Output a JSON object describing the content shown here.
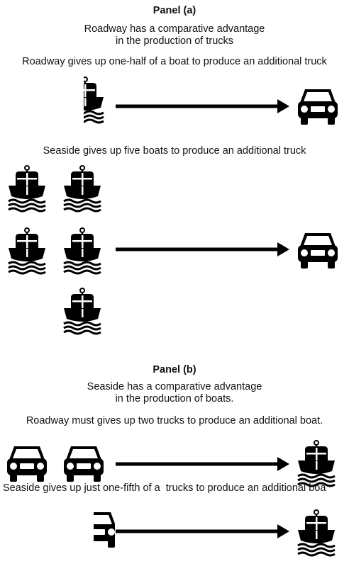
{
  "panel_a": {
    "title": "Panel (a)",
    "advantage": [
      "Roadway has a comparative advantage",
      "in the production of trucks"
    ],
    "captions": [
      "Roadway gives up one-half of a boat to produce an additional truck",
      "Seaside gives up five boats to produce an additional truck"
    ]
  },
  "panel_b": {
    "title": "Panel (b)",
    "advantage": [
      "Seaside has a comparative advantage",
      "in the production of boats."
    ],
    "captions": [
      "Roadway must gives up two trucks to produce an additional boat.",
      "Seaside gives up just one-fifth of a  trucks to produce an additional boa"
    ]
  }
}
